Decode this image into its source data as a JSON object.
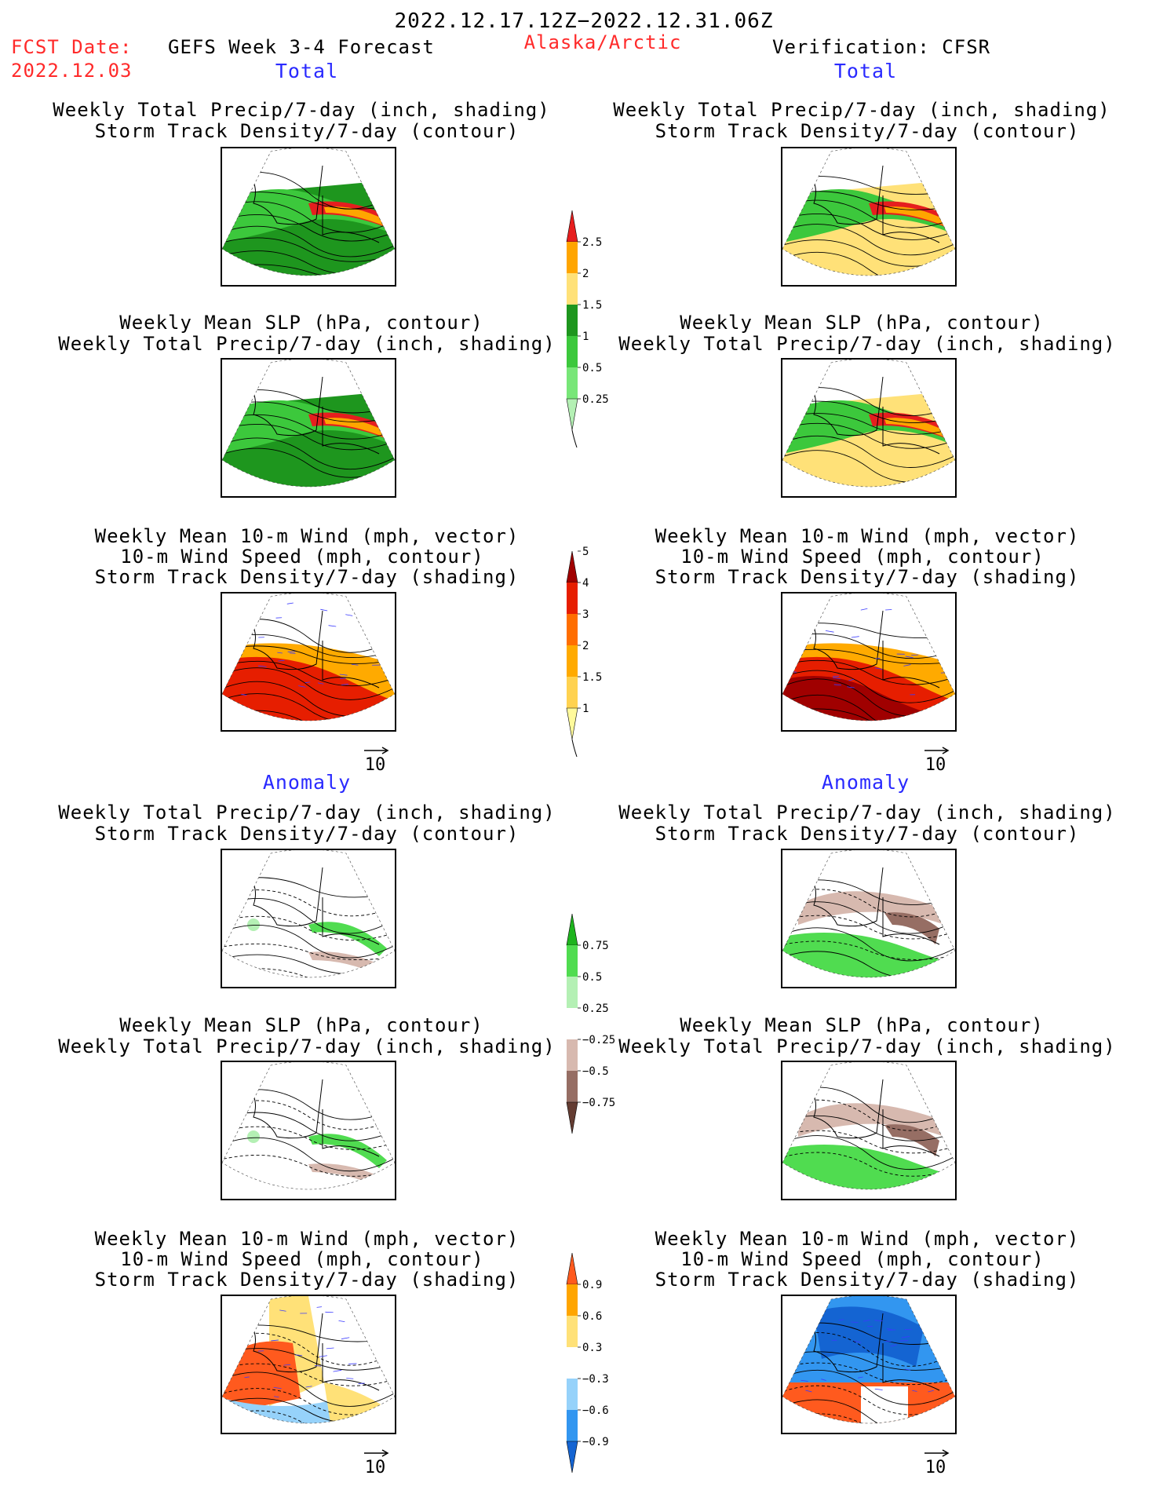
{
  "header": {
    "date_range": "2022.12.17.12Z−2022.12.31.06Z",
    "fcst_label": "FCST Date:",
    "fcst_date": "2022.12.03",
    "model": "GEFS Week 3-4 Forecast",
    "region": "Alaska/Arctic",
    "verification": "Verification: CFSR"
  },
  "sections": {
    "total": "Total",
    "anomaly": "Anomaly"
  },
  "titles": {
    "precip": [
      "Weekly Total Precip/7-day (inch, shading)",
      "Storm Track Density/7-day (contour)"
    ],
    "slp": [
      "Weekly Mean SLP (hPa, contour)",
      "Weekly Total Precip/7-day (inch, shading)"
    ],
    "wind": [
      "Weekly Mean 10-m Wind (mph, vector)",
      "10-m Wind Speed (mph, contour)",
      "Storm Track Density/7-day (shading)"
    ]
  },
  "vector_ref": "10",
  "colors": {
    "precip_total": [
      "#b4f0b4",
      "#78e678",
      "#3cc83c",
      "#1e961e",
      "#ffe178",
      "#ffa500",
      "#e61e1e"
    ],
    "storm_total": [
      "#fffa9b",
      "#ffd250",
      "#ffaa00",
      "#ff6e00",
      "#e61e00",
      "#a00000"
    ],
    "precip_anom": [
      "#643c32",
      "#966e64",
      "#d7b9af",
      "#ffffff",
      "#b4f0b4",
      "#50dc50",
      "#1eb41e"
    ],
    "storm_anom": [
      "#1464d2",
      "#3296f0",
      "#96d2fa",
      "#ffffff",
      "#ffe178",
      "#ffa500",
      "#ff5a1e"
    ]
  },
  "chart_data": [
    {
      "type": "heatmap",
      "name": "Precip total colorbar",
      "levels": [
        "0.25",
        "0.5",
        "1",
        "1.5",
        "2",
        "2.5"
      ]
    },
    {
      "type": "heatmap",
      "name": "Storm track density total colorbar",
      "levels": [
        "1",
        "1.5",
        "2",
        "3",
        "4",
        "5"
      ]
    },
    {
      "type": "heatmap",
      "name": "Precip anomaly colorbar",
      "levels": [
        "−0.75",
        "−0.5",
        "−0.25",
        "0.25",
        "0.5",
        "0.75"
      ]
    },
    {
      "type": "heatmap",
      "name": "Storm track density anomaly colorbar",
      "levels": [
        "−0.9",
        "−0.6",
        "−0.3",
        "0.3",
        "0.6",
        "0.9"
      ]
    }
  ]
}
